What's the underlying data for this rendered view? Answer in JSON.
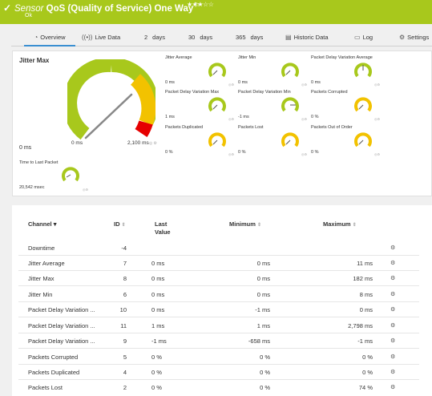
{
  "header": {
    "kind": "Sensor",
    "name": "QoS (Quality of Service) One Way",
    "stars": "★★★☆☆",
    "status": "Ok",
    "color": "#a8c81c"
  },
  "tabs": [
    {
      "label": "Overview",
      "icon": "overview-icon",
      "active": true
    },
    {
      "label": "Live Data",
      "icon": "live-data-icon"
    },
    {
      "num": "2",
      "label": "days"
    },
    {
      "num": "30",
      "label": "days"
    },
    {
      "num": "365",
      "label": "days"
    },
    {
      "label": "Historic Data",
      "icon": "historic-data-icon"
    },
    {
      "label": "Log",
      "icon": "log-icon"
    },
    {
      "label": "Settings",
      "icon": "settings-icon"
    }
  ],
  "big_gauge": {
    "title": "Jitter Max",
    "min_label": "0 ms",
    "max_label": "2,100 ms",
    "value": "0 ms"
  },
  "small_gauges": [
    {
      "label": "Jitter Average",
      "value": "0 ms",
      "ring": "#a8c81c",
      "needle": 0.0
    },
    {
      "label": "Jitter Min",
      "value": "0 ms",
      "ring": "#a8c81c",
      "needle": 0.0
    },
    {
      "label": "Packet Delay Variation Average",
      "value": "0 ms",
      "ring": "#a8c81c",
      "needle": 0.5
    },
    {
      "label": "Packet Delay Variation Max",
      "value": "1 ms",
      "ring": "#a8c81c",
      "needle": 0.0
    },
    {
      "label": "Packet Delay Variation Min",
      "value": "-1 ms",
      "ring": "#a8c81c",
      "needle": 0.75
    },
    {
      "label": "Packets Corrupted",
      "value": "0 %",
      "ring": "#f2c200",
      "needle": 0.0
    },
    {
      "label": "Packets Duplicated",
      "value": "0 %",
      "ring": "#f2c200",
      "needle": 0.0
    },
    {
      "label": "Packets Lost",
      "value": "0 %",
      "ring": "#f2c200",
      "needle": 0.0
    },
    {
      "label": "Packets Out of Order",
      "value": "0 %",
      "ring": "#f2c200",
      "needle": 0.0
    }
  ],
  "time_gauge": {
    "label": "Time to Last Packet",
    "value": "20,542 msec",
    "ring": "#a8c81c",
    "needle": 0.05
  },
  "table": {
    "headers": {
      "channel": "Channel",
      "id": "ID",
      "last": "Last Value",
      "min": "Minimum",
      "max": "Maximum"
    },
    "rows": [
      {
        "channel": "Downtime",
        "id": "-4",
        "last": "",
        "min": "",
        "max": ""
      },
      {
        "channel": "Jitter Average",
        "id": "7",
        "last": "0 ms",
        "min": "0 ms",
        "max": "11 ms"
      },
      {
        "channel": "Jitter Max",
        "id": "8",
        "last": "0 ms",
        "min": "0 ms",
        "max": "182 ms"
      },
      {
        "channel": "Jitter Min",
        "id": "6",
        "last": "0 ms",
        "min": "0 ms",
        "max": "8 ms"
      },
      {
        "channel": "Packet Delay Variation ...",
        "id": "10",
        "last": "0 ms",
        "min": "-1 ms",
        "max": "0 ms"
      },
      {
        "channel": "Packet Delay Variation ...",
        "id": "11",
        "last": "1 ms",
        "min": "1 ms",
        "max": "2,798 ms"
      },
      {
        "channel": "Packet Delay Variation ...",
        "id": "9",
        "last": "-1 ms",
        "min": "-658 ms",
        "max": "-1 ms"
      },
      {
        "channel": "Packets Corrupted",
        "id": "5",
        "last": "0 %",
        "min": "0 %",
        "max": "0 %"
      },
      {
        "channel": "Packets Duplicated",
        "id": "4",
        "last": "0 %",
        "min": "0 %",
        "max": "0 %"
      },
      {
        "channel": "Packets Lost",
        "id": "2",
        "last": "0 %",
        "min": "0 %",
        "max": "74 %"
      }
    ]
  }
}
